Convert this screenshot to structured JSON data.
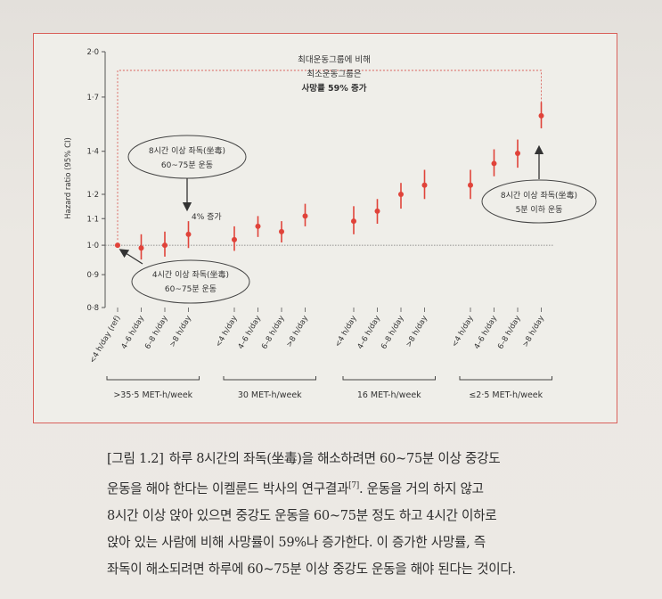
{
  "chart_data": {
    "type": "scatter",
    "ylabel": "Hazard ratio (95% CI)",
    "y_ticks": [
      "0·8",
      "0·9",
      "1·0",
      "1·1",
      "1·2",
      "1·4",
      "1·7",
      "2·0"
    ],
    "y_tick_values": [
      0.8,
      0.9,
      1.0,
      1.1,
      1.2,
      1.4,
      1.7,
      2.0
    ],
    "ylim": [
      0.8,
      2.0
    ],
    "yscale": "log",
    "reference_line": 1.0,
    "sitting_categories": [
      "<4 h/day (ref)",
      "4–6 h/day",
      "6–8 h/day",
      ">8 h/day"
    ],
    "groups": [
      {
        "label": ">35·5 MET-h/week",
        "points": [
          {
            "category": "<4 h/day (ref)",
            "hr": 1.0,
            "lo": 1.0,
            "hi": 1.0
          },
          {
            "category": "4–6 h/day",
            "hr": 0.99,
            "lo": 0.95,
            "hi": 1.04
          },
          {
            "category": "6–8 h/day",
            "hr": 1.0,
            "lo": 0.96,
            "hi": 1.05
          },
          {
            "category": ">8 h/day",
            "hr": 1.04,
            "lo": 0.99,
            "hi": 1.09
          }
        ]
      },
      {
        "label": "30 MET-h/week",
        "points": [
          {
            "category": "<4 h/day",
            "hr": 1.02,
            "lo": 0.98,
            "hi": 1.07
          },
          {
            "category": "4–6 h/day",
            "hr": 1.07,
            "lo": 1.03,
            "hi": 1.11
          },
          {
            "category": "6–8 h/day",
            "hr": 1.05,
            "lo": 1.01,
            "hi": 1.09
          },
          {
            "category": ">8 h/day",
            "hr": 1.11,
            "lo": 1.07,
            "hi": 1.16
          }
        ]
      },
      {
        "label": "16 MET-h/week",
        "points": [
          {
            "category": "<4 h/day",
            "hr": 1.09,
            "lo": 1.04,
            "hi": 1.15
          },
          {
            "category": "4–6 h/day",
            "hr": 1.13,
            "lo": 1.08,
            "hi": 1.18
          },
          {
            "category": "6–8 h/day",
            "hr": 1.2,
            "lo": 1.14,
            "hi": 1.25
          },
          {
            "category": ">8 h/day",
            "hr": 1.24,
            "lo": 1.18,
            "hi": 1.31
          }
        ]
      },
      {
        "label": "≤2·5 MET-h/week",
        "points": [
          {
            "category": "<4 h/day",
            "hr": 1.24,
            "lo": 1.18,
            "hi": 1.31
          },
          {
            "category": "4–6 h/day",
            "hr": 1.34,
            "lo": 1.28,
            "hi": 1.41
          },
          {
            "category": "6–8 h/day",
            "hr": 1.39,
            "lo": 1.32,
            "hi": 1.46
          },
          {
            "category": ">8 h/day",
            "hr": 1.59,
            "lo": 1.52,
            "hi": 1.67
          }
        ]
      }
    ],
    "colors": {
      "point": "#e0433a",
      "accent": "#d9605a",
      "text": "#333333"
    },
    "grid": false
  },
  "annotations": {
    "top": [
      "최대운동그룹에 비해",
      "최소운동그룹은"
    ],
    "top_bold": "사망률 59% 증가",
    "box_8h_60": [
      "8시간 이상 좌독(坐毒)",
      "60~75분 운동"
    ],
    "increase_4": "4% 증가",
    "box_4h": [
      "4시간 이상 좌독(坐毒)",
      "60~75분 운동"
    ],
    "box_8h_5": [
      "8시간 이상 좌독(坐毒)",
      "5분 이하 운동"
    ]
  },
  "caption": {
    "label": "[그림 1.2]",
    "line1": "하루 8시간의 좌독(坐毒)을 해소하려면 60~75분 이상 중강도",
    "line2_pre": "운동을 해야 한다는 이켈룬드 박사의 연구결과",
    "line2_ref": "[7]",
    "line2_post": ". 운동을 거의 하지 않고",
    "line3": "8시간 이상 앉아 있으면 중강도 운동을 60~75분 정도 하고 4시간 이하로",
    "line4": "앉아 있는 사람에 비해 사망률이 59%나 증가한다. 이 증가한 사망률, 즉",
    "line5": "좌독이 해소되려면 하루에 60~75분 이상 중강도 운동을 해야 된다는 것이다."
  }
}
